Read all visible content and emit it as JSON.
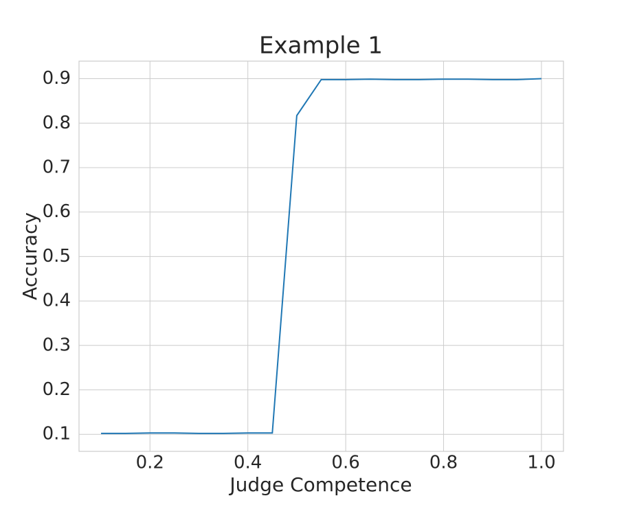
{
  "chart_data": {
    "type": "line",
    "title": "Example 1",
    "xlabel": "Judge Competence",
    "ylabel": "Accuracy",
    "x": [
      0.1,
      0.15,
      0.2,
      0.25,
      0.3,
      0.35,
      0.4,
      0.45,
      0.5,
      0.55,
      0.6,
      0.65,
      0.7,
      0.75,
      0.8,
      0.85,
      0.9,
      0.95,
      1.0
    ],
    "series": [
      {
        "name": "Accuracy",
        "color": "#1f77b4",
        "values": [
          0.102,
          0.102,
          0.103,
          0.103,
          0.102,
          0.102,
          0.103,
          0.103,
          0.817,
          0.898,
          0.898,
          0.899,
          0.898,
          0.898,
          0.899,
          0.899,
          0.898,
          0.898,
          0.9
        ]
      }
    ],
    "xlim": [
      0.055,
      1.045
    ],
    "ylim": [
      0.0617,
      0.9395
    ],
    "xticks": [
      0.2,
      0.4,
      0.6,
      0.8,
      {
        "value": 1.0,
        "label": "1.0"
      }
    ],
    "yticks": [
      0.1,
      0.2,
      0.3,
      0.4,
      0.5,
      0.6,
      0.7,
      0.8,
      0.9
    ],
    "grid": true
  }
}
